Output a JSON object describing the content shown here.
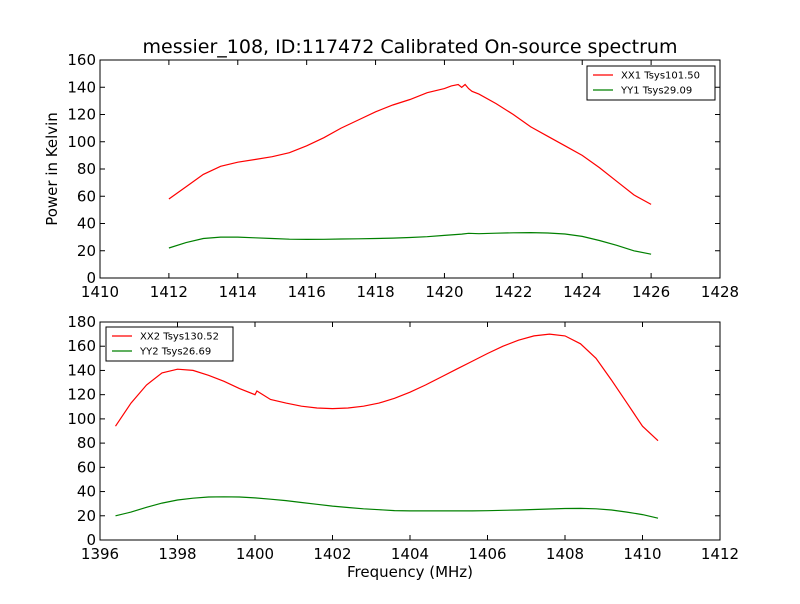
{
  "title": "messier_108, ID:117472 Calibrated On-source spectrum",
  "ylabel": "Power in Kelvin",
  "xlabel": "Frequency (MHz)",
  "colors": {
    "red": "#ff0000",
    "green": "#008000",
    "axis": "#000000"
  },
  "chart_data": [
    {
      "type": "line",
      "title": "messier_108, ID:117472 Calibrated On-source spectrum",
      "ylabel": "Power in Kelvin",
      "xlabel": "",
      "xlim": [
        1410,
        1428
      ],
      "ylim": [
        0,
        160
      ],
      "xticks": [
        "1410",
        "1412",
        "1414",
        "1416",
        "1418",
        "1420",
        "1422",
        "1424",
        "1426",
        "1428"
      ],
      "yticks": [
        "0",
        "20",
        "40",
        "60",
        "80",
        "100",
        "120",
        "140",
        "160"
      ],
      "grid": false,
      "legend_position": "top-right",
      "series": [
        {
          "name": "XX1 Tsys101.50",
          "color": "#ff0000",
          "x": [
            1412.0,
            1412.5,
            1413.0,
            1413.5,
            1414.0,
            1414.5,
            1415.0,
            1415.5,
            1416.0,
            1416.5,
            1417.0,
            1417.5,
            1418.0,
            1418.5,
            1419.0,
            1419.5,
            1420.0,
            1420.2,
            1420.4,
            1420.5,
            1420.6,
            1420.7,
            1420.8,
            1421.0,
            1421.5,
            1422.0,
            1422.5,
            1423.0,
            1423.5,
            1424.0,
            1424.5,
            1425.0,
            1425.5,
            1426.0
          ],
          "y": [
            58,
            67,
            76,
            82,
            85,
            87,
            89,
            92,
            97,
            103,
            110,
            116,
            122,
            127,
            131,
            136,
            139,
            141,
            142,
            140,
            142,
            139,
            137,
            135,
            128,
            120,
            111,
            104,
            97,
            90,
            81,
            71,
            61,
            54
          ]
        },
        {
          "name": "YY1 Tsys29.09",
          "color": "#008000",
          "x": [
            1412.0,
            1412.5,
            1413.0,
            1413.5,
            1414.0,
            1414.5,
            1415.0,
            1415.5,
            1416.0,
            1416.5,
            1417.0,
            1417.5,
            1418.0,
            1418.5,
            1419.0,
            1419.5,
            1420.0,
            1420.5,
            1420.7,
            1421.0,
            1421.5,
            1422.0,
            1422.5,
            1423.0,
            1423.5,
            1424.0,
            1424.5,
            1425.0,
            1425.5,
            1426.0
          ],
          "y": [
            22,
            26,
            29,
            30,
            30,
            29.5,
            29,
            28.5,
            28.3,
            28.4,
            28.6,
            28.8,
            29,
            29.3,
            29.7,
            30.3,
            31.3,
            32.2,
            32.8,
            32.5,
            32.9,
            33.2,
            33.3,
            33.0,
            32.3,
            30.5,
            27.5,
            24,
            20,
            17.5
          ]
        }
      ]
    },
    {
      "type": "line",
      "title": "",
      "ylabel": "",
      "xlabel": "Frequency (MHz)",
      "xlim": [
        1396,
        1412
      ],
      "ylim": [
        0,
        180
      ],
      "xticks": [
        "1396",
        "1398",
        "1400",
        "1402",
        "1404",
        "1406",
        "1408",
        "1410",
        "1412"
      ],
      "yticks": [
        "0",
        "20",
        "40",
        "60",
        "80",
        "100",
        "120",
        "140",
        "160",
        "180"
      ],
      "grid": false,
      "legend_position": "top-left",
      "series": [
        {
          "name": "XX2 Tsys130.52",
          "color": "#ff0000",
          "x": [
            1396.4,
            1396.8,
            1397.2,
            1397.6,
            1398.0,
            1398.4,
            1398.8,
            1399.2,
            1399.6,
            1400.0,
            1400.05,
            1400.4,
            1400.8,
            1401.2,
            1401.6,
            1402.0,
            1402.4,
            1402.8,
            1403.2,
            1403.6,
            1404.0,
            1404.4,
            1404.8,
            1405.2,
            1405.6,
            1406.0,
            1406.4,
            1406.8,
            1407.2,
            1407.6,
            1408.0,
            1408.4,
            1408.8,
            1409.2,
            1409.6,
            1410.0,
            1410.4
          ],
          "y": [
            94,
            113,
            128,
            138,
            141,
            140,
            136,
            131,
            125,
            120,
            123,
            116,
            113,
            110.5,
            109,
            108.5,
            109,
            110.5,
            113,
            117,
            122,
            128,
            134.5,
            141,
            147.5,
            154,
            160,
            165,
            168.5,
            170,
            168.5,
            162,
            150,
            132,
            113,
            94,
            82
          ]
        },
        {
          "name": "YY2 Tsys26.69",
          "color": "#008000",
          "x": [
            1396.4,
            1396.8,
            1397.2,
            1397.6,
            1398.0,
            1398.4,
            1398.8,
            1399.2,
            1399.6,
            1400.0,
            1400.4,
            1400.8,
            1401.2,
            1401.6,
            1402.0,
            1402.4,
            1402.8,
            1403.2,
            1403.6,
            1404.0,
            1404.4,
            1404.8,
            1405.2,
            1405.6,
            1406.0,
            1406.4,
            1406.8,
            1407.2,
            1407.6,
            1408.0,
            1408.4,
            1408.8,
            1409.2,
            1409.6,
            1410.0,
            1410.4
          ],
          "y": [
            20,
            23,
            27,
            30.5,
            33,
            34.5,
            35.5,
            35.7,
            35.5,
            34.8,
            33.7,
            32.5,
            31,
            29.5,
            28,
            26.8,
            25.8,
            25,
            24.3,
            24,
            24,
            24,
            24,
            24,
            24.2,
            24.5,
            24.8,
            25.2,
            25.6,
            26,
            26.1,
            25.8,
            24.8,
            23,
            21,
            18
          ]
        }
      ]
    }
  ]
}
